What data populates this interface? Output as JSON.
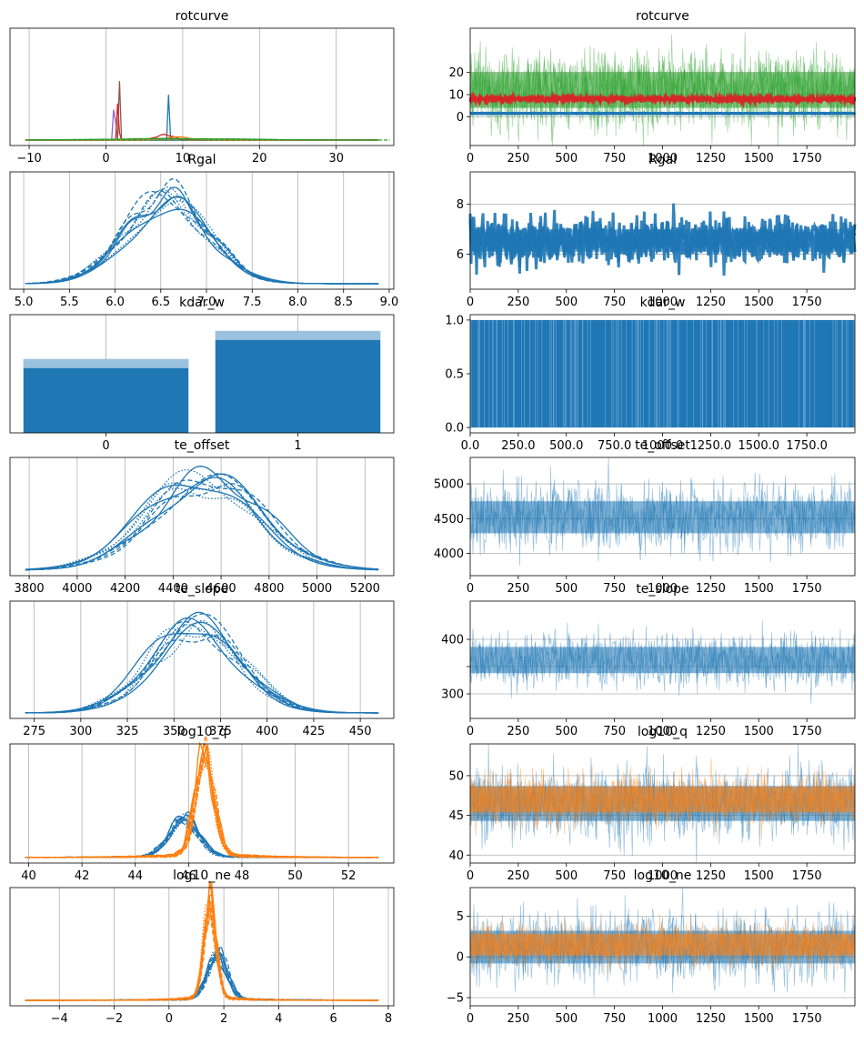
{
  "figure": {
    "colors": {
      "blue": "#1f77b4",
      "orange": "#ff7f0e",
      "green": "#2ca02c",
      "red": "#d62728",
      "purple": "#9467bd",
      "brown": "#8c564b",
      "grid": "#b0b0b0"
    }
  },
  "chart_data": [
    {
      "type": "line",
      "title": "rotcurve",
      "panel": "density",
      "grid": "vertical",
      "xlim": [
        -12.5,
        37.5
      ],
      "xticks": [
        -10,
        0,
        10,
        20,
        30
      ],
      "series": [
        {
          "color": "purple",
          "peak": 1.1,
          "sd": 0.12,
          "height": 0.43
        },
        {
          "color": "brown",
          "peak": 1.7,
          "sd": 0.06,
          "height": 0.97
        },
        {
          "color": "red",
          "peak": 1.6,
          "sd": 0.07,
          "height": 0.88
        },
        {
          "color": "blue",
          "peak": 8.2,
          "sd": 0.08,
          "height": 0.68
        },
        {
          "color": "red",
          "peak": 7.8,
          "sd": 1.2,
          "height": 0.05
        },
        {
          "color": "orange",
          "peak": 9.5,
          "sd": 1.8,
          "height": 0.03
        },
        {
          "color": "green",
          "peak": 10,
          "sd": 9,
          "height": 0.015
        }
      ]
    },
    {
      "type": "line",
      "title": "rotcurve",
      "panel": "trace",
      "grid": "horizontal",
      "xlim": [
        0,
        2000
      ],
      "ylim": [
        -13,
        40
      ],
      "xticks": [
        0,
        250,
        500,
        750,
        1000,
        1250,
        1500,
        1750
      ],
      "yticks": [
        0,
        10,
        20
      ],
      "series": [
        {
          "color": "green",
          "center": 12,
          "spread": 8
        },
        {
          "color": "red",
          "center": 8,
          "spread": 0.6
        },
        {
          "color": "blue",
          "center": 1.5,
          "spread": 0.1
        }
      ]
    },
    {
      "type": "line",
      "title": "Rgal",
      "panel": "density",
      "grid": "vertical",
      "xlim": [
        4.85,
        9.05
      ],
      "xticks": [
        5.0,
        5.5,
        6.0,
        6.5,
        7.0,
        7.5,
        8.0,
        8.5,
        9.0
      ],
      "tick_decimals": 1,
      "series": [
        {
          "color": "blue",
          "center": 6.55,
          "sd": 0.45,
          "chains": 10
        }
      ]
    },
    {
      "type": "line",
      "title": "Rgal",
      "panel": "trace",
      "grid": "horizontal",
      "xlim": [
        0,
        2000
      ],
      "ylim": [
        4.6,
        9.3
      ],
      "xticks": [
        0,
        250,
        500,
        750,
        1000,
        1250,
        1500,
        1750
      ],
      "yticks": [
        6,
        8
      ],
      "series": [
        {
          "color": "blue",
          "center": 6.55,
          "spread": 0.45
        }
      ]
    },
    {
      "type": "bar",
      "title": "kdar_w",
      "panel": "density",
      "grid": "vertical",
      "categories": [
        "0",
        "1"
      ],
      "values": [
        0.42,
        0.58
      ],
      "xlim": [
        -0.5,
        1.5
      ],
      "xticks": [
        0,
        1
      ]
    },
    {
      "type": "line",
      "title": "kdar_w",
      "panel": "trace",
      "grid": "none",
      "xlim": [
        0,
        2000
      ],
      "ylim": [
        -0.05,
        1.05
      ],
      "xticks": [
        0,
        250,
        500,
        750,
        1000,
        1250,
        1500,
        1750
      ],
      "yticks": [
        0.0,
        0.5,
        1.0
      ],
      "tick_decimals": 1,
      "series": [
        {
          "color": "blue",
          "binary": true
        }
      ]
    },
    {
      "type": "line",
      "title": "te_offset",
      "panel": "density",
      "grid": "vertical",
      "xlim": [
        3720,
        5320
      ],
      "xticks": [
        3800,
        4000,
        4200,
        4400,
        4600,
        4800,
        5000,
        5200
      ],
      "series": [
        {
          "color": "blue",
          "center": 4520,
          "sd": 230,
          "chains": 10
        }
      ]
    },
    {
      "type": "line",
      "title": "te_offset",
      "panel": "trace",
      "grid": "horizontal",
      "xlim": [
        0,
        2000
      ],
      "ylim": [
        3680,
        5380
      ],
      "xticks": [
        0,
        250,
        500,
        750,
        1000,
        1250,
        1500,
        1750
      ],
      "yticks": [
        4000,
        4500,
        5000
      ],
      "series": [
        {
          "color": "blue",
          "center": 4520,
          "spread": 230
        }
      ]
    },
    {
      "type": "line",
      "title": "te_slope",
      "panel": "density",
      "grid": "vertical",
      "xlim": [
        262,
        468
      ],
      "xticks": [
        275,
        300,
        325,
        350,
        375,
        400,
        425,
        450
      ],
      "series": [
        {
          "color": "blue",
          "center": 362,
          "sd": 24,
          "chains": 10
        }
      ]
    },
    {
      "type": "line",
      "title": "te_slope",
      "panel": "trace",
      "grid": "horizontal",
      "xlim": [
        0,
        2000
      ],
      "ylim": [
        255,
        470
      ],
      "xticks": [
        0,
        250,
        500,
        750,
        1000,
        1250,
        1500,
        1750
      ],
      "yticks": [
        300,
        350,
        400
      ],
      "tick_labels_shown": [
        300,
        400
      ],
      "series": [
        {
          "color": "blue",
          "center": 362,
          "spread": 24
        }
      ]
    },
    {
      "type": "line",
      "title": "log10_q",
      "panel": "density",
      "grid": "vertical",
      "xlim": [
        39.3,
        53.7
      ],
      "xticks": [
        40,
        42,
        44,
        46,
        48,
        50,
        52
      ],
      "series": [
        {
          "color": "blue",
          "center": 45.8,
          "sd": 0.55,
          "height": 0.38,
          "tail": 1.6,
          "chains": 10
        },
        {
          "color": "orange",
          "center": 46.6,
          "sd": 0.35,
          "height": 0.95,
          "tail": 1.8,
          "chains": 10
        }
      ]
    },
    {
      "type": "line",
      "title": "log10_q",
      "panel": "trace",
      "grid": "horizontal",
      "xlim": [
        0,
        2000
      ],
      "ylim": [
        39,
        54
      ],
      "xticks": [
        0,
        250,
        500,
        750,
        1000,
        1250,
        1500,
        1750
      ],
      "yticks": [
        40,
        45,
        50
      ],
      "series": [
        {
          "color": "blue",
          "center": 46.5,
          "spread": 2.2
        },
        {
          "color": "orange",
          "center": 47.0,
          "spread": 1.6
        }
      ]
    },
    {
      "type": "line",
      "title": "log10_ne",
      "panel": "density",
      "grid": "vertical",
      "xlim": [
        -5.8,
        8.2
      ],
      "xticks": [
        -4,
        -2,
        0,
        2,
        4,
        6,
        8
      ],
      "series": [
        {
          "color": "blue",
          "center": 1.75,
          "sd": 0.35,
          "height": 0.45,
          "tail": 2.0,
          "chains": 10
        },
        {
          "color": "orange",
          "center": 1.5,
          "sd": 0.22,
          "height": 0.95,
          "tail": 1.8,
          "chains": 10
        }
      ]
    },
    {
      "type": "line",
      "title": "log10_ne",
      "panel": "trace",
      "grid": "horizontal",
      "xlim": [
        0,
        2000
      ],
      "ylim": [
        -6,
        8.5
      ],
      "xticks": [
        0,
        250,
        500,
        750,
        1000,
        1250,
        1500,
        1750
      ],
      "yticks": [
        -5,
        0,
        5
      ],
      "series": [
        {
          "color": "blue",
          "center": 1.2,
          "spread": 2.0
        },
        {
          "color": "orange",
          "center": 1.5,
          "spread": 1.3
        }
      ]
    }
  ]
}
